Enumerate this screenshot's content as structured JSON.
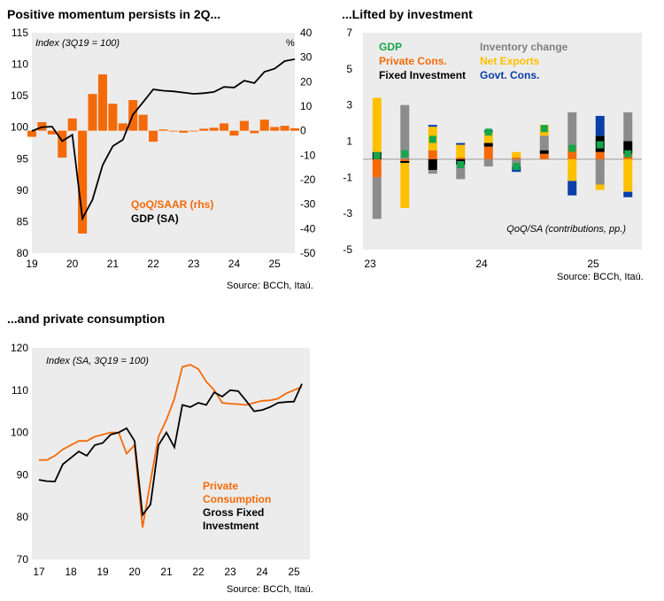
{
  "colors": {
    "orange": "#F46A08",
    "black": "#000000",
    "gray": "#8C8C8C",
    "yellow": "#FFC000",
    "green": "#14A64A",
    "blue": "#0A3FA8",
    "panel_bg": "#ECECEC"
  },
  "sources": [
    "Source: BCCh, Itaú.",
    "Source: BCCh, Itaú.",
    "Source: BCCh, Itaú."
  ],
  "chart_data": [
    {
      "type": "bar+line",
      "title": "Positive momentum persists in 2Q...",
      "annotation_left": "Index (3Q19 = 100)",
      "annotation_right": "%",
      "x_ticks": [
        "19",
        "20",
        "21",
        "22",
        "23",
        "24",
        "25"
      ],
      "y_left_ticks": [
        "115",
        "110",
        "105",
        "100",
        "95",
        "90",
        "85",
        "80"
      ],
      "y_left_range": [
        80,
        115
      ],
      "y_right_ticks": [
        "40",
        "30",
        "20",
        "10",
        "0",
        "-10",
        "-20",
        "-30",
        "-40",
        "-50"
      ],
      "y_right_range": [
        -50,
        40
      ],
      "x_range": [
        2019,
        2025.5
      ],
      "series": [
        {
          "name": "QoQ/SAAR (rhs)",
          "kind": "bar",
          "axis": "right",
          "color": "#F46A08",
          "points": [
            [
              2019.0,
              -2.5
            ],
            [
              2019.25,
              3.5
            ],
            [
              2019.5,
              -1.5
            ],
            [
              2019.75,
              -11
            ],
            [
              2020.0,
              5
            ],
            [
              2020.25,
              -42
            ],
            [
              2020.5,
              15
            ],
            [
              2020.75,
              23
            ],
            [
              2021.0,
              11
            ],
            [
              2021.25,
              3
            ],
            [
              2021.5,
              12.5
            ],
            [
              2021.75,
              6.5
            ],
            [
              2022.0,
              -4.5
            ],
            [
              2022.25,
              0.5
            ],
            [
              2022.5,
              -0.3
            ],
            [
              2022.75,
              -0.8
            ],
            [
              2023.0,
              0
            ],
            [
              2023.25,
              0.8
            ],
            [
              2023.5,
              1.2
            ],
            [
              2023.75,
              3
            ],
            [
              2024.0,
              -2
            ],
            [
              2024.25,
              4
            ],
            [
              2024.5,
              -1
            ],
            [
              2024.75,
              4.5
            ],
            [
              2025.0,
              1.5
            ],
            [
              2025.25,
              2
            ],
            [
              2025.5,
              1
            ]
          ]
        },
        {
          "name": "GDP (SA)",
          "kind": "line",
          "axis": "left",
          "color": "#000000",
          "points": [
            [
              2019.0,
              99.4
            ],
            [
              2019.25,
              100
            ],
            [
              2019.5,
              100.1
            ],
            [
              2019.75,
              97.8
            ],
            [
              2020.0,
              98.8
            ],
            [
              2020.25,
              85.5
            ],
            [
              2020.5,
              88.5
            ],
            [
              2020.75,
              94
            ],
            [
              2021.0,
              97
            ],
            [
              2021.25,
              98
            ],
            [
              2021.5,
              102
            ],
            [
              2021.75,
              104
            ],
            [
              2022.0,
              106
            ],
            [
              2022.25,
              105.8
            ],
            [
              2022.5,
              105.7
            ],
            [
              2022.75,
              105.5
            ],
            [
              2023.0,
              105.3
            ],
            [
              2023.25,
              105.4
            ],
            [
              2023.5,
              105.6
            ],
            [
              2023.75,
              106.4
            ],
            [
              2024.0,
              106.3
            ],
            [
              2024.25,
              107.4
            ],
            [
              2024.5,
              107
            ],
            [
              2024.75,
              108.8
            ],
            [
              2025.0,
              109.3
            ],
            [
              2025.25,
              110.5
            ],
            [
              2025.5,
              110.8
            ]
          ]
        }
      ]
    },
    {
      "type": "stacked_bar",
      "title": "...Lifted by investment",
      "annotation": "QoQ/SA (contributions, pp.)",
      "x_ticks": [
        "23",
        "24",
        "25"
      ],
      "y_ticks": [
        "7",
        "5",
        "3",
        "1",
        "-1",
        "-3",
        "-5"
      ],
      "y_range": [
        -5,
        7
      ],
      "legend": [
        {
          "label": "GDP",
          "color": "#14A64A"
        },
        {
          "label": "Private Cons.",
          "color": "#F46A08"
        },
        {
          "label": "Fixed Investment",
          "color": "#000000"
        },
        {
          "label": "Inventory change",
          "color": "#8C8C8C"
        },
        {
          "label": "Net Exports",
          "color": "#FFC000"
        },
        {
          "label": "Govt. Cons.",
          "color": "#0A3FA8"
        }
      ],
      "quarters": [
        "1Q23",
        "2Q23",
        "3Q23",
        "4Q23",
        "1Q24",
        "2Q24",
        "3Q24",
        "4Q24",
        "1Q25",
        "2Q25"
      ],
      "contributions": {
        "Private Cons.": [
          -1.0,
          -0.1,
          0.5,
          0.1,
          0.7,
          0.1,
          0.3,
          0.6,
          0.4,
          0.3
        ],
        "Fixed Investment": [
          0.4,
          -0.1,
          -0.6,
          -0.3,
          0.2,
          0.0,
          0.2,
          0.0,
          0.9,
          0.7
        ],
        "Inventory change": [
          -2.3,
          3.0,
          -0.2,
          -0.8,
          -0.4,
          -0.4,
          0.8,
          2.0,
          -1.4,
          1.6
        ],
        "Net Exports": [
          3.0,
          -2.5,
          1.3,
          0.7,
          0.6,
          0.3,
          0.6,
          -1.2,
          -0.3,
          -1.8
        ],
        "Govt. Cons.": [
          0.0,
          0.0,
          0.1,
          0.1,
          0.1,
          -0.3,
          0.0,
          -0.8,
          1.1,
          -0.3
        ],
        "GDP": [
          0.2,
          0.3,
          1.1,
          -0.3,
          1.5,
          -0.4,
          1.7,
          0.6,
          0.8,
          0.3
        ]
      }
    },
    {
      "type": "line",
      "title": "...and private consumption",
      "annotation": "Index (SA, 3Q19 = 100)",
      "x_ticks": [
        "17",
        "18",
        "19",
        "20",
        "21",
        "22",
        "23",
        "24",
        "25"
      ],
      "y_ticks": [
        "120",
        "110",
        "100",
        "90",
        "80",
        "70"
      ],
      "y_range": [
        70,
        120
      ],
      "x_range": [
        2017,
        2025.5
      ],
      "series": [
        {
          "name": "Private Consumption",
          "color": "#F46A08",
          "points": [
            [
              2017.0,
              93.5
            ],
            [
              2017.25,
              93.5
            ],
            [
              2017.5,
              94.5
            ],
            [
              2017.75,
              96
            ],
            [
              2018.0,
              97
            ],
            [
              2018.25,
              98
            ],
            [
              2018.5,
              98
            ],
            [
              2018.75,
              99
            ],
            [
              2019.0,
              99.5
            ],
            [
              2019.25,
              100
            ],
            [
              2019.5,
              100
            ],
            [
              2019.75,
              95
            ],
            [
              2020.0,
              97
            ],
            [
              2020.25,
              77.5
            ],
            [
              2020.5,
              88.5
            ],
            [
              2020.75,
              99
            ],
            [
              2021.0,
              103
            ],
            [
              2021.25,
              108
            ],
            [
              2021.5,
              115.5
            ],
            [
              2021.75,
              116
            ],
            [
              2022.0,
              115
            ],
            [
              2022.25,
              112
            ],
            [
              2022.5,
              110
            ],
            [
              2022.75,
              107
            ],
            [
              2023.0,
              106.8
            ],
            [
              2023.25,
              106.7
            ],
            [
              2023.5,
              106.5
            ],
            [
              2023.75,
              107
            ],
            [
              2024.0,
              107.5
            ],
            [
              2024.25,
              107.6
            ],
            [
              2024.5,
              108
            ],
            [
              2024.75,
              109.2
            ],
            [
              2025.0,
              110
            ],
            [
              2025.25,
              110.8
            ]
          ]
        },
        {
          "name": "Gross Fixed Investment",
          "color": "#000000",
          "points": [
            [
              2017.0,
              88.8
            ],
            [
              2017.25,
              88.5
            ],
            [
              2017.5,
              88.4
            ],
            [
              2017.75,
              92.5
            ],
            [
              2018.0,
              94
            ],
            [
              2018.25,
              95.5
            ],
            [
              2018.5,
              94.5
            ],
            [
              2018.75,
              97
            ],
            [
              2019.0,
              97.5
            ],
            [
              2019.25,
              99.5
            ],
            [
              2019.5,
              100
            ],
            [
              2019.75,
              101
            ],
            [
              2020.0,
              98
            ],
            [
              2020.25,
              80.5
            ],
            [
              2020.5,
              83
            ],
            [
              2020.75,
              97
            ],
            [
              2021.0,
              100
            ],
            [
              2021.25,
              96.5
            ],
            [
              2021.5,
              106.5
            ],
            [
              2021.75,
              106
            ],
            [
              2022.0,
              107
            ],
            [
              2022.25,
              106.5
            ],
            [
              2022.5,
              109.5
            ],
            [
              2022.75,
              108.5
            ],
            [
              2023.0,
              110
            ],
            [
              2023.25,
              109.8
            ],
            [
              2023.5,
              107.5
            ],
            [
              2023.75,
              105
            ],
            [
              2024.0,
              105.3
            ],
            [
              2024.25,
              106
            ],
            [
              2024.5,
              107
            ],
            [
              2024.75,
              107.2
            ],
            [
              2025.0,
              107.3
            ],
            [
              2025.25,
              111.5
            ]
          ]
        }
      ]
    }
  ]
}
